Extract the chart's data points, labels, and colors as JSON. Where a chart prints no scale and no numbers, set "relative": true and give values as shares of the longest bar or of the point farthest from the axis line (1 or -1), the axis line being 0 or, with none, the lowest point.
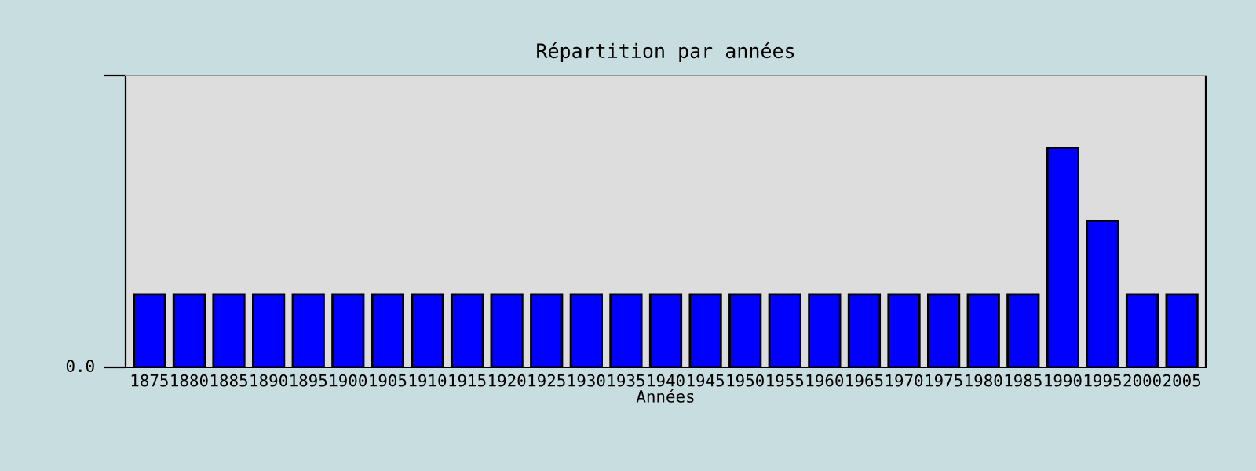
{
  "chart_data": {
    "type": "bar",
    "title": "Répartition par années",
    "xlabel": "Années",
    "relative": true,
    "categories": [
      "1875",
      "1880",
      "1885",
      "1890",
      "1895",
      "1900",
      "1905",
      "1910",
      "1915",
      "1920",
      "1925",
      "1930",
      "1935",
      "1940",
      "1945",
      "1950",
      "1955",
      "1960",
      "1965",
      "1970",
      "1975",
      "1980",
      "1985",
      "1990",
      "1995",
      "2000",
      "2005"
    ],
    "values": [
      0.333,
      0.333,
      0.333,
      0.333,
      0.333,
      0.333,
      0.333,
      0.333,
      0.333,
      0.333,
      0.333,
      0.333,
      0.333,
      0.333,
      0.333,
      0.333,
      0.333,
      0.333,
      0.333,
      0.333,
      0.333,
      0.333,
      0.333,
      1,
      0.667,
      0.333,
      0.333
    ],
    "color": "#0000ff",
    "annotations": [
      "0.0"
    ],
    "grid": false,
    "legend": false
  }
}
